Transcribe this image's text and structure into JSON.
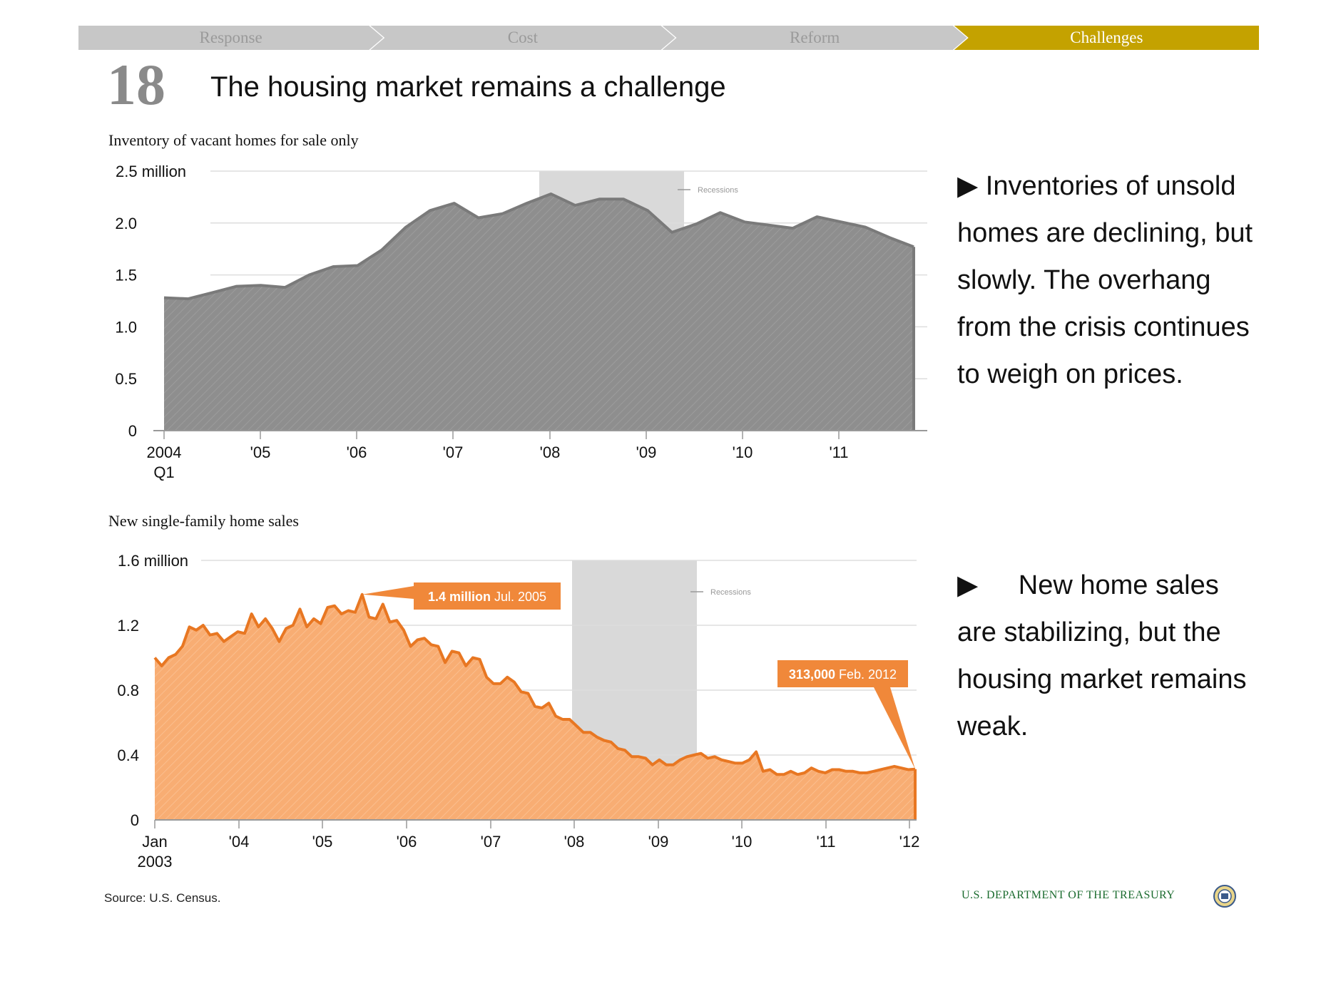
{
  "nav": {
    "tabs": [
      {
        "label": "Response",
        "active": false
      },
      {
        "label": "Cost",
        "active": false
      },
      {
        "label": "Reform",
        "active": false
      },
      {
        "label": "Challenges",
        "active": true
      }
    ],
    "colors": {
      "inactive": "#c7c7c7",
      "active": "#c4a200"
    }
  },
  "slide": {
    "number": "18",
    "title": "The housing market remains a challenge"
  },
  "chart_data": [
    {
      "type": "area",
      "title": "Inventory of vacant homes for sale only",
      "ylim": [
        0,
        2.5
      ],
      "y_ticks": [
        "0",
        "0.5",
        "1.0",
        "1.5",
        "2.0",
        "2.5 million"
      ],
      "x_ticks": [
        "2004",
        "'05",
        "'06",
        "'07",
        "'08",
        "'09",
        "'10",
        "'11"
      ],
      "x_tick_sub": "Q1",
      "x_start": "2004-Q1",
      "color": "#8c8c8c",
      "recession_label": "Recessions",
      "recession": [
        "2008-Q1",
        "2009-Q3"
      ],
      "values": [
        1.28,
        1.27,
        1.33,
        1.39,
        1.4,
        1.38,
        1.5,
        1.58,
        1.59,
        1.74,
        1.96,
        2.12,
        2.19,
        2.05,
        2.09,
        2.19,
        2.28,
        2.17,
        2.23,
        2.23,
        2.12,
        1.91,
        1.99,
        2.1,
        2.01,
        1.98,
        1.95,
        2.06,
        2.01,
        1.96,
        1.86,
        1.77
      ],
      "grid": true,
      "legend": "top-center"
    },
    {
      "type": "area",
      "title": "New single-family home sales",
      "ylim": [
        0,
        1.6
      ],
      "y_ticks": [
        "0",
        "0.4",
        "0.8",
        "1.2",
        "1.6 million"
      ],
      "x_ticks": [
        "Jan",
        "'04",
        "'05",
        "'06",
        "'07",
        "'08",
        "'09",
        "'10",
        "'11",
        "'12"
      ],
      "x_tick_sub": "2003",
      "x_start": "2003-01",
      "color": "#f08a3c",
      "recession_label": "Recessions",
      "recession": [
        "2007-12",
        "2009-06"
      ],
      "values": [
        1.0,
        0.95,
        1.0,
        1.02,
        1.07,
        1.19,
        1.17,
        1.2,
        1.14,
        1.15,
        1.1,
        1.13,
        1.16,
        1.15,
        1.27,
        1.19,
        1.24,
        1.18,
        1.1,
        1.18,
        1.2,
        1.3,
        1.19,
        1.24,
        1.21,
        1.31,
        1.32,
        1.27,
        1.29,
        1.28,
        1.39,
        1.25,
        1.24,
        1.33,
        1.22,
        1.23,
        1.17,
        1.07,
        1.11,
        1.12,
        1.08,
        1.07,
        0.97,
        1.04,
        1.03,
        0.95,
        1.0,
        0.99,
        0.88,
        0.84,
        0.84,
        0.88,
        0.85,
        0.79,
        0.78,
        0.7,
        0.69,
        0.72,
        0.64,
        0.62,
        0.62,
        0.58,
        0.54,
        0.54,
        0.51,
        0.49,
        0.48,
        0.44,
        0.43,
        0.39,
        0.39,
        0.38,
        0.34,
        0.37,
        0.34,
        0.34,
        0.37,
        0.39,
        0.4,
        0.41,
        0.38,
        0.39,
        0.37,
        0.36,
        0.35,
        0.35,
        0.37,
        0.42,
        0.3,
        0.31,
        0.28,
        0.28,
        0.3,
        0.28,
        0.29,
        0.32,
        0.3,
        0.29,
        0.31,
        0.31,
        0.3,
        0.3,
        0.29,
        0.29,
        0.3,
        0.31,
        0.32,
        0.33,
        0.32,
        0.31,
        0.313
      ],
      "annotations": [
        {
          "bold": "1.4 million",
          "text": "Jul. 2005",
          "point_index": 30
        },
        {
          "bold": "313,000",
          "text": "Feb. 2012",
          "point_index": 110
        }
      ],
      "grid": true,
      "legend": "top-center"
    }
  ],
  "bullets": [
    {
      "arrow": "▶",
      "text": "Inventories of unsold homes are declining, but slowly. The overhang from the crisis continues to weigh on prices."
    },
    {
      "arrow": "▶",
      "text": "New home sales are stabilizing, but the housing market remains weak."
    }
  ],
  "footer": {
    "source": "Source: U.S. Census.",
    "department": "U.S. DEPARTMENT OF THE TREASURY"
  }
}
